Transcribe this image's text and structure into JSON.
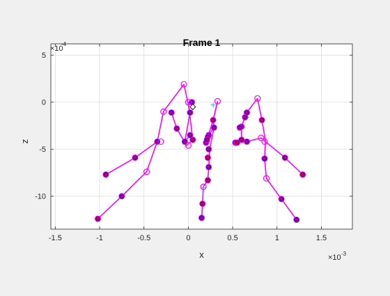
{
  "window": {
    "figure_background": "#f0f0f0"
  },
  "chart_data": {
    "type": "line",
    "title": "Frame 1",
    "xlabel": "x",
    "ylabel": "z",
    "x_exponent_label": "×10",
    "x_exponent_power": "-3",
    "y_exponent_label": "×10",
    "y_exponent_power": "-4",
    "xlim": [
      -1.55,
      1.85
    ],
    "ylim": [
      -13.5,
      6.2
    ],
    "x_ticks": [
      -1.5,
      -1,
      -0.5,
      0,
      0.5,
      1,
      1.5
    ],
    "x_tick_labels": [
      "-1.5",
      "-1",
      "-0.5",
      "0",
      "0.5",
      "1",
      "1.5"
    ],
    "y_ticks": [
      5,
      0,
      -5,
      -10
    ],
    "y_tick_labels": [
      "5",
      "0",
      "-5",
      "-10"
    ],
    "grid": true,
    "colors": {
      "line": "#ff00ff",
      "marker_fill": "#0000ff",
      "marker_star": "#ff0000",
      "cross": "#1fb5e8",
      "diamond": "#000000",
      "grid": "#dcdcdc",
      "axes_box": "#262626",
      "plot_bg": "#ffffff"
    },
    "series": [
      {
        "style": "line",
        "points": [
          [
            -0.05,
            1.9
          ],
          [
            -0.28,
            -1.0
          ],
          [
            -0.35,
            -4.2
          ],
          [
            -0.6,
            -5.9
          ],
          [
            -0.93,
            -7.7
          ]
        ]
      },
      {
        "style": "line",
        "points": [
          [
            -0.35,
            -4.2
          ],
          [
            -0.47,
            -7.4
          ],
          [
            -0.75,
            -10.0
          ],
          [
            -1.02,
            -12.4
          ]
        ]
      },
      {
        "style": "line",
        "points": [
          [
            -0.05,
            1.9
          ],
          [
            0.02,
            -1.1
          ],
          [
            -0.04,
            -4.2
          ],
          [
            0.02,
            -3.5
          ],
          [
            0.05,
            -4.0
          ]
        ]
      },
      {
        "style": "line",
        "points": [
          [
            -0.19,
            -1.1
          ],
          [
            -0.13,
            -2.8
          ],
          [
            -0.02,
            -4.6
          ],
          [
            0.05,
            -4.0
          ],
          [
            0.0,
            0.0
          ]
        ]
      },
      {
        "style": "line",
        "points": [
          [
            0.33,
            0.1
          ],
          [
            0.28,
            -1.9
          ],
          [
            0.29,
            -2.7
          ],
          [
            0.23,
            -3.5
          ],
          [
            0.2,
            -4.3
          ]
        ]
      },
      {
        "style": "line",
        "points": [
          [
            0.29,
            -2.7
          ],
          [
            0.24,
            -5.0
          ],
          [
            0.23,
            -6.9
          ],
          [
            0.22,
            -8.3
          ],
          [
            0.17,
            -9.0
          ],
          [
            0.16,
            -10.8
          ],
          [
            0.15,
            -12.3
          ]
        ]
      },
      {
        "style": "line",
        "points": [
          [
            0.78,
            0.4
          ],
          [
            0.83,
            -1.9
          ],
          [
            0.87,
            -4.1
          ],
          [
            0.86,
            -6.0
          ],
          [
            0.88,
            -8.1
          ],
          [
            1.05,
            -10.3
          ],
          [
            1.22,
            -12.5
          ]
        ]
      },
      {
        "style": "line",
        "points": [
          [
            0.78,
            0.4
          ],
          [
            0.66,
            -1.1
          ],
          [
            0.6,
            -2.6
          ],
          [
            0.6,
            -4.0
          ],
          [
            0.53,
            -4.3
          ],
          [
            0.66,
            -4.2
          ],
          [
            0.82,
            -3.8
          ],
          [
            1.09,
            -5.9
          ],
          [
            1.29,
            -7.7
          ]
        ]
      },
      {
        "style": "line",
        "points": [
          [
            0.33,
            0.1
          ],
          [
            0.28,
            -1.9
          ],
          [
            0.22,
            -3.7
          ],
          [
            0.2,
            -4.4
          ]
        ]
      }
    ],
    "circle_markers": [
      [
        -0.05,
        1.9
      ],
      [
        -0.28,
        -1.0
      ],
      [
        -0.31,
        -4.2
      ],
      [
        -0.47,
        -7.4
      ],
      [
        0.0,
        0.0
      ],
      [
        0.0,
        -4.6
      ],
      [
        0.33,
        0.1
      ],
      [
        0.78,
        0.4
      ],
      [
        0.82,
        -3.8
      ],
      [
        0.86,
        -4.2
      ],
      [
        0.88,
        -8.1
      ],
      [
        0.17,
        -9.0
      ]
    ],
    "star_markers": [
      [
        -0.93,
        -7.7
      ],
      [
        -0.6,
        -5.9
      ],
      [
        -0.35,
        -4.2
      ],
      [
        -0.75,
        -10.0
      ],
      [
        -1.02,
        -12.4
      ],
      [
        -0.19,
        -1.1
      ],
      [
        -0.13,
        -2.8
      ],
      [
        -0.04,
        -4.2
      ],
      [
        0.02,
        -1.1
      ],
      [
        0.05,
        -4.0
      ],
      [
        0.02,
        -3.5
      ],
      [
        0.04,
        0.0
      ],
      [
        0.28,
        -1.9
      ],
      [
        0.29,
        -2.7
      ],
      [
        0.23,
        -3.5
      ],
      [
        0.22,
        -3.7
      ],
      [
        0.2,
        -4.3
      ],
      [
        0.21,
        -4.0
      ],
      [
        0.23,
        -5.0
      ],
      [
        0.22,
        -5.9
      ],
      [
        0.23,
        -6.9
      ],
      [
        0.22,
        -8.3
      ],
      [
        0.16,
        -10.8
      ],
      [
        0.15,
        -12.3
      ],
      [
        0.66,
        -1.1
      ],
      [
        0.64,
        -1.6
      ],
      [
        0.6,
        -2.6
      ],
      [
        0.58,
        -2.7
      ],
      [
        0.83,
        -1.9
      ],
      [
        0.66,
        -4.2
      ],
      [
        0.6,
        -4.0
      ],
      [
        0.53,
        -4.3
      ],
      [
        0.55,
        -4.3
      ],
      [
        0.86,
        -6.0
      ],
      [
        1.09,
        -5.9
      ],
      [
        1.29,
        -7.7
      ],
      [
        1.05,
        -10.3
      ],
      [
        1.22,
        -12.5
      ]
    ],
    "cross_markers": [
      [
        0.21,
        -3.8
      ],
      [
        0.28,
        -0.3
      ],
      [
        0.22,
        -4.2
      ],
      [
        0.66,
        -1.6
      ],
      [
        0.17,
        -9.1
      ],
      [
        0.22,
        -5.8
      ]
    ],
    "diamond_markers": [
      [
        0.05,
        -0.5
      ]
    ]
  }
}
